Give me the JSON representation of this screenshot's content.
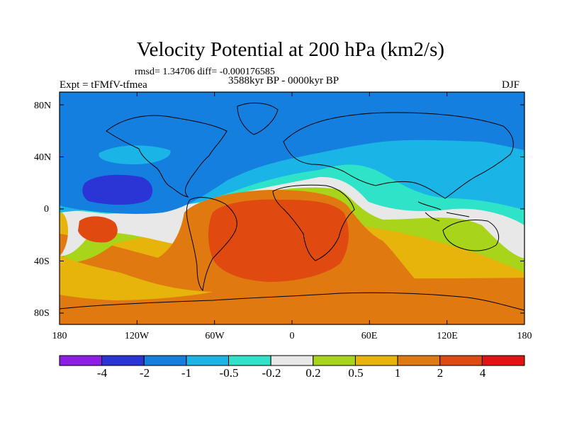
{
  "title": "Velocity Potential at 200 hPa (km2/s)",
  "stats_line": "rmsd= 1.34706 diff= -0.000176585",
  "experiment": "Expt = tFMfV-tfmea",
  "period": "3588kyr BP - 0000kyr BP",
  "season": "DJF",
  "lat_labels": [
    "80N",
    "40N",
    "0",
    "40S",
    "80S"
  ],
  "lon_labels": [
    "180",
    "120W",
    "60W",
    "0",
    "60E",
    "120E",
    "180"
  ],
  "colorbar": {
    "labels": [
      "-4",
      "-2",
      "-1",
      "-0.5",
      "-0.2",
      "0.2",
      "0.5",
      "1",
      "2",
      "4"
    ],
    "colors": [
      "#8d1ee6",
      "#2b35d6",
      "#157fe0",
      "#1ab4e6",
      "#2ee3c8",
      "#e8e8e8",
      "#a8d419",
      "#e6b40a",
      "#e07a10",
      "#e04a10",
      "#e01414"
    ]
  },
  "palette": {
    "ocean_blue": "#157fe0",
    "light_blue": "#1ab4e6",
    "cyan": "#2ee3c8",
    "neutral": "#e8e8e8",
    "yellow_green": "#a8d419",
    "orange_yellow": "#e6b40a",
    "orange": "#e07a10",
    "red_orange": "#e04a10",
    "dark_blue": "#2b35d6",
    "coast": "#000000"
  }
}
